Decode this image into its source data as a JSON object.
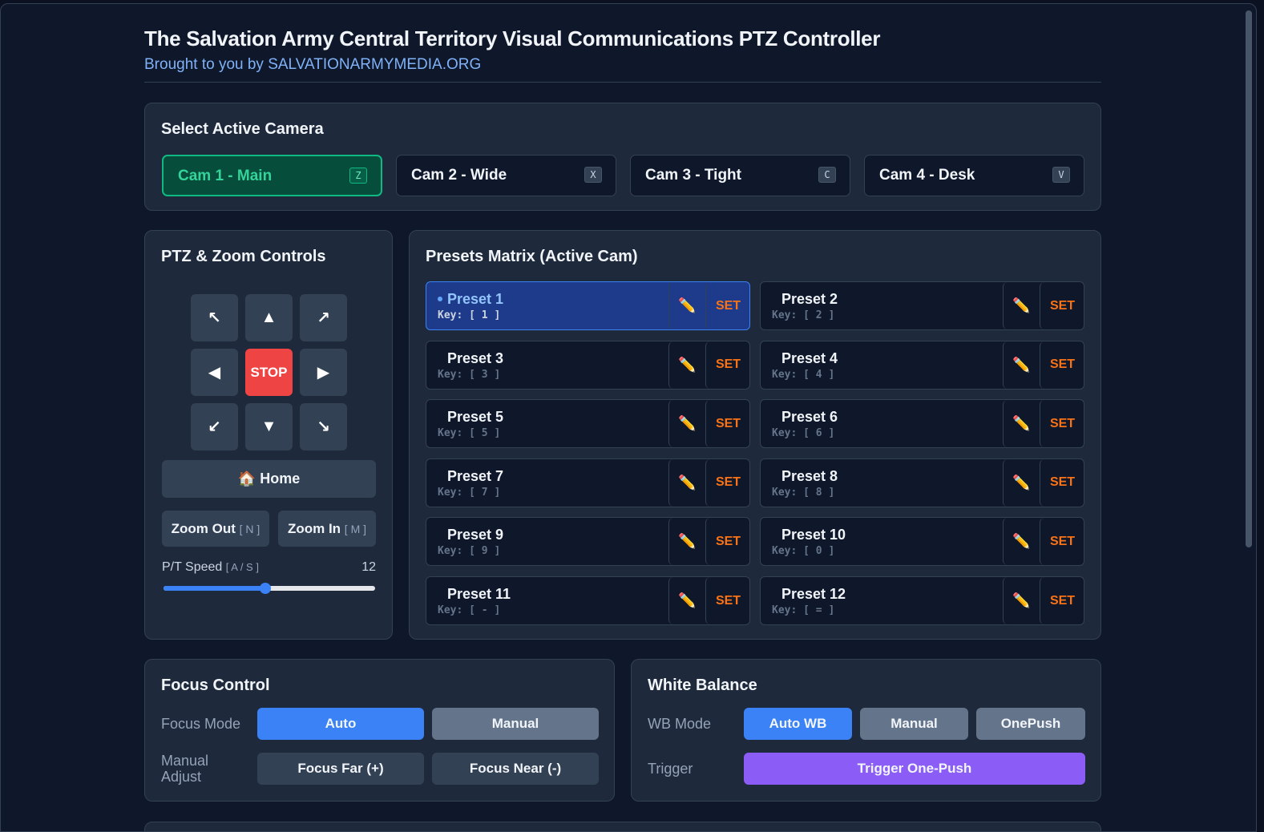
{
  "header": {
    "title": "The Salvation Army Central Territory Visual Communications PTZ Controller",
    "subtitle": "Brought to you by SALVATIONARMYMEDIA.ORG"
  },
  "cameras": {
    "title": "Select Active Camera",
    "items": [
      {
        "label": "Cam 1 - Main",
        "key": "Z"
      },
      {
        "label": "Cam 2 - Wide",
        "key": "X"
      },
      {
        "label": "Cam 3 - Tight",
        "key": "C"
      },
      {
        "label": "Cam 4 - Desk",
        "key": "V"
      }
    ]
  },
  "ptz": {
    "title": "PTZ & Zoom Controls",
    "arrows": [
      "↖",
      "▲",
      "↗",
      "◀",
      "STOP",
      "▶",
      "↙",
      "▼",
      "↘"
    ],
    "home": "🏠 Home",
    "zoom_out": "Zoom Out",
    "zoom_out_key": "[ N ]",
    "zoom_in": "Zoom In",
    "zoom_in_key": "[ M ]",
    "speed_label": "P/T Speed",
    "speed_keys": "[ A / S ]",
    "speed_value": 12
  },
  "presets": {
    "title": "Presets Matrix (Active Cam)",
    "edit": "✏️",
    "set": "SET",
    "items": [
      {
        "name": "Preset 1",
        "key": "Key: [ 1 ]"
      },
      {
        "name": "Preset 2",
        "key": "Key: [ 2 ]"
      },
      {
        "name": "Preset 3",
        "key": "Key: [ 3 ]"
      },
      {
        "name": "Preset 4",
        "key": "Key: [ 4 ]"
      },
      {
        "name": "Preset 5",
        "key": "Key: [ 5 ]"
      },
      {
        "name": "Preset 6",
        "key": "Key: [ 6 ]"
      },
      {
        "name": "Preset 7",
        "key": "Key: [ 7 ]"
      },
      {
        "name": "Preset 8",
        "key": "Key: [ 8 ]"
      },
      {
        "name": "Preset 9",
        "key": "Key: [ 9 ]"
      },
      {
        "name": "Preset 10",
        "key": "Key: [ 0 ]"
      },
      {
        "name": "Preset 11",
        "key": "Key: [ - ]"
      },
      {
        "name": "Preset 12",
        "key": "Key: [ = ]"
      }
    ]
  },
  "focus": {
    "title": "Focus Control",
    "mode_label": "Focus Mode",
    "modes": [
      "Auto",
      "Manual"
    ],
    "adjust_label": "Manual Adjust",
    "adjust": [
      "Focus Far (+)",
      "Focus Near (-)"
    ]
  },
  "wb": {
    "title": "White Balance",
    "mode_label": "WB Mode",
    "modes": [
      "Auto WB",
      "Manual",
      "OnePush"
    ],
    "trigger_label": "Trigger",
    "trigger": "Trigger One-Push"
  }
}
